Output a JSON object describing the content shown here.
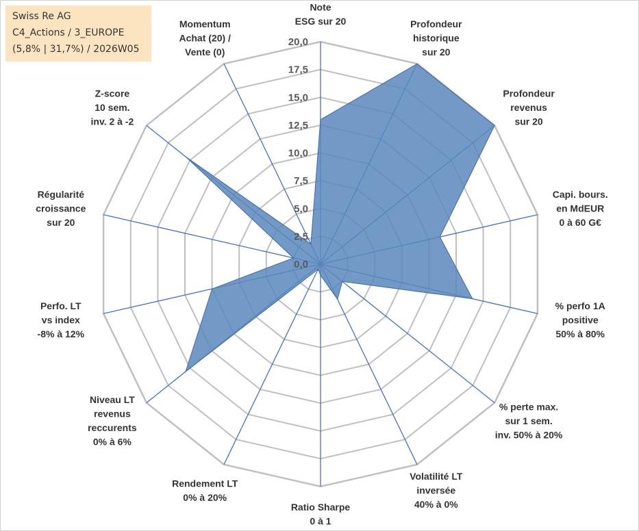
{
  "chart_data": {
    "type": "radar",
    "title": "Swiss Re AG",
    "subtitle_lines": [
      "C4_Actions / 3_EUROPE",
      "(5,8% | 31,7%) / 2026W05"
    ],
    "scale": {
      "min": 0,
      "max": 20,
      "step": 2.5
    },
    "tick_labels": [
      "0,0",
      "2,5",
      "5,0",
      "7,5",
      "10,0",
      "12,5",
      "15,0",
      "17,5",
      "20,0"
    ],
    "axes": [
      {
        "label_lines": [
          "Note",
          "ESG sur 20"
        ],
        "value": 13
      },
      {
        "label_lines": [
          "Profondeur",
          "historique",
          "sur 20"
        ],
        "value": 20
      },
      {
        "label_lines": [
          "Profondeur",
          "revenus",
          "sur 20"
        ],
        "value": 20
      },
      {
        "label_lines": [
          "Capi. bours.",
          "en MdEUR",
          "0 à 60 G€"
        ],
        "value": 11
      },
      {
        "label_lines": [
          "% perfo 1A",
          "positive",
          "50% à 80%"
        ],
        "value": 14
      },
      {
        "label_lines": [
          "% perte max.",
          "sur 1 sem.",
          "inv. 50% à 20%"
        ],
        "value": 2.5
      },
      {
        "label_lines": [
          "Volatilité LT",
          "inversée",
          "40% à 0%"
        ],
        "value": 3.5
      },
      {
        "label_lines": [
          "Ratio Sharpe",
          "0 à 1"
        ],
        "value": 1
      },
      {
        "label_lines": [
          "Rendement LT",
          "0% à 20%"
        ],
        "value": 0.5
      },
      {
        "label_lines": [
          "Niveau LT",
          "revenus",
          "reccurents",
          "0% à 6%"
        ],
        "value": 15.5
      },
      {
        "label_lines": [
          "Perfo. LT",
          "vs index",
          "-8% à 12%"
        ],
        "value": 10
      },
      {
        "label_lines": [
          "Régularité",
          "croissance",
          "sur 20"
        ],
        "value": 2.5
      },
      {
        "label_lines": [
          "Z-score",
          "10 sem.",
          "inv. 2 à -2"
        ],
        "value": 15.5
      },
      {
        "label_lines": [
          "Momentum",
          "Achat (20) /",
          "Vente (0)"
        ],
        "value": 2
      }
    ],
    "series": [
      {
        "name": "Swiss Re AG",
        "fill": "#5b87bd",
        "stroke": "#3e6aa6"
      }
    ],
    "grid_color": "#bfbfbf",
    "axis_color": "#4472c4"
  }
}
